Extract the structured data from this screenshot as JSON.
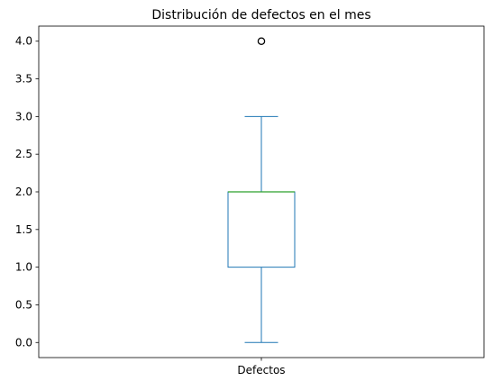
{
  "chart_data": {
    "type": "boxplot",
    "title": "Distribución de defectos en el mes",
    "xlabel": "",
    "ylabel": "",
    "categories": [
      "Defectos"
    ],
    "ylim": [
      -0.2,
      4.2
    ],
    "y_ticks": [
      0.0,
      0.5,
      1.0,
      1.5,
      2.0,
      2.5,
      3.0,
      3.5,
      4.0
    ],
    "y_tick_labels": [
      "0.0",
      "0.5",
      "1.0",
      "1.5",
      "2.0",
      "2.5",
      "3.0",
      "3.5",
      "4.0"
    ],
    "grid": false,
    "boxes": [
      {
        "category": "Defectos",
        "whisker_low": 0.0,
        "q1": 1.0,
        "median": 2.0,
        "q3": 2.0,
        "whisker_high": 3.0,
        "outliers": [
          4.0
        ]
      }
    ],
    "colors": {
      "box": "#1f77b4",
      "median": "#2ca02c",
      "outlier": "#000000",
      "axes": "#000000"
    }
  }
}
